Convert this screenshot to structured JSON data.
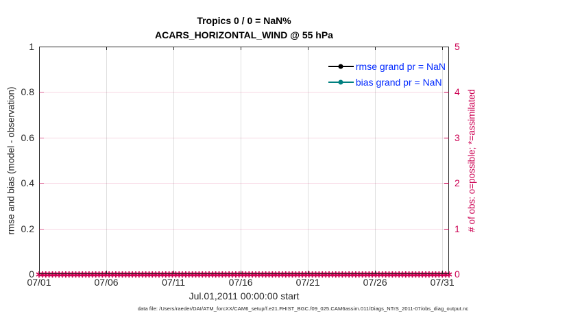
{
  "title": {
    "line1": "Tropics 0 / 0 = NaN%",
    "line2": "ACARS_HORIZONTAL_WIND @ 55 hPa"
  },
  "colors": {
    "axis_black": "#262626",
    "obs_crimson": "#cc0052",
    "grid_gray": "rgba(38,38,38,0.15)",
    "grid_pink": "rgba(204,0,82,0.16)",
    "tick_pink": "rgba(204,0,82,0.55)",
    "legend_text_blue": "#0028ff",
    "bias_teal": "#008080",
    "rmse_black": "#000000"
  },
  "legend": [
    {
      "label": "rmse grand pr = NaN",
      "color": "#000000"
    },
    {
      "label": "bias grand pr = NaN",
      "color": "#008080"
    }
  ],
  "footer": "data file: /Users/raeder/DAI/ATM_forcXX/CAM6_setup/f.e21.FHIST_BGC.f09_025.CAM6assim.011/Diags_NTrS_2011-07/obs_diag_output.nc",
  "chart_data": {
    "type": "line",
    "title": "Tropics 0 / 0 = NaN%",
    "subtitle": "ACARS_HORIZONTAL_WIND @ 55 hPa",
    "xlabel": "Jul.01,2011 00:00:00 start",
    "x_ticks": [
      "07/01",
      "07/06",
      "07/11",
      "07/16",
      "07/21",
      "07/26",
      "07/31"
    ],
    "x_tick_positions_days": [
      0,
      5,
      10,
      15,
      20,
      25,
      30
    ],
    "x_range_days": [
      0,
      30.5
    ],
    "left_axis": {
      "label": "rmse and bias (model - observation)",
      "ylim": [
        0,
        1
      ],
      "ticks": [
        "0",
        "0.2",
        "0.4",
        "0.6",
        "0.8",
        "1"
      ],
      "tick_values": [
        0,
        0.2,
        0.4,
        0.6,
        0.8,
        1
      ],
      "color": "#262626"
    },
    "right_axis": {
      "label": "# of obs: o=possible; *=assimilated",
      "ylim": [
        0,
        5
      ],
      "ticks": [
        "0",
        "1",
        "2",
        "3",
        "4",
        "5"
      ],
      "tick_values": [
        0,
        1,
        2,
        3,
        4,
        5
      ],
      "color": "#cc0052"
    },
    "grid": true,
    "legend_position": "top-right inside",
    "series": [
      {
        "name": "rmse grand pr = NaN",
        "axis": "left",
        "color": "#000000",
        "marker": "filled-circle",
        "values": null
      },
      {
        "name": "bias grand pr = NaN",
        "axis": "left",
        "color": "#008080",
        "marker": "filled-circle",
        "values": null
      },
      {
        "name": "# of obs assimilated",
        "axis": "right",
        "color": "#cc0052",
        "marker": "*",
        "marker_glyph": "∗",
        "constant_value": 0,
        "marker_count": 124
      }
    ]
  }
}
